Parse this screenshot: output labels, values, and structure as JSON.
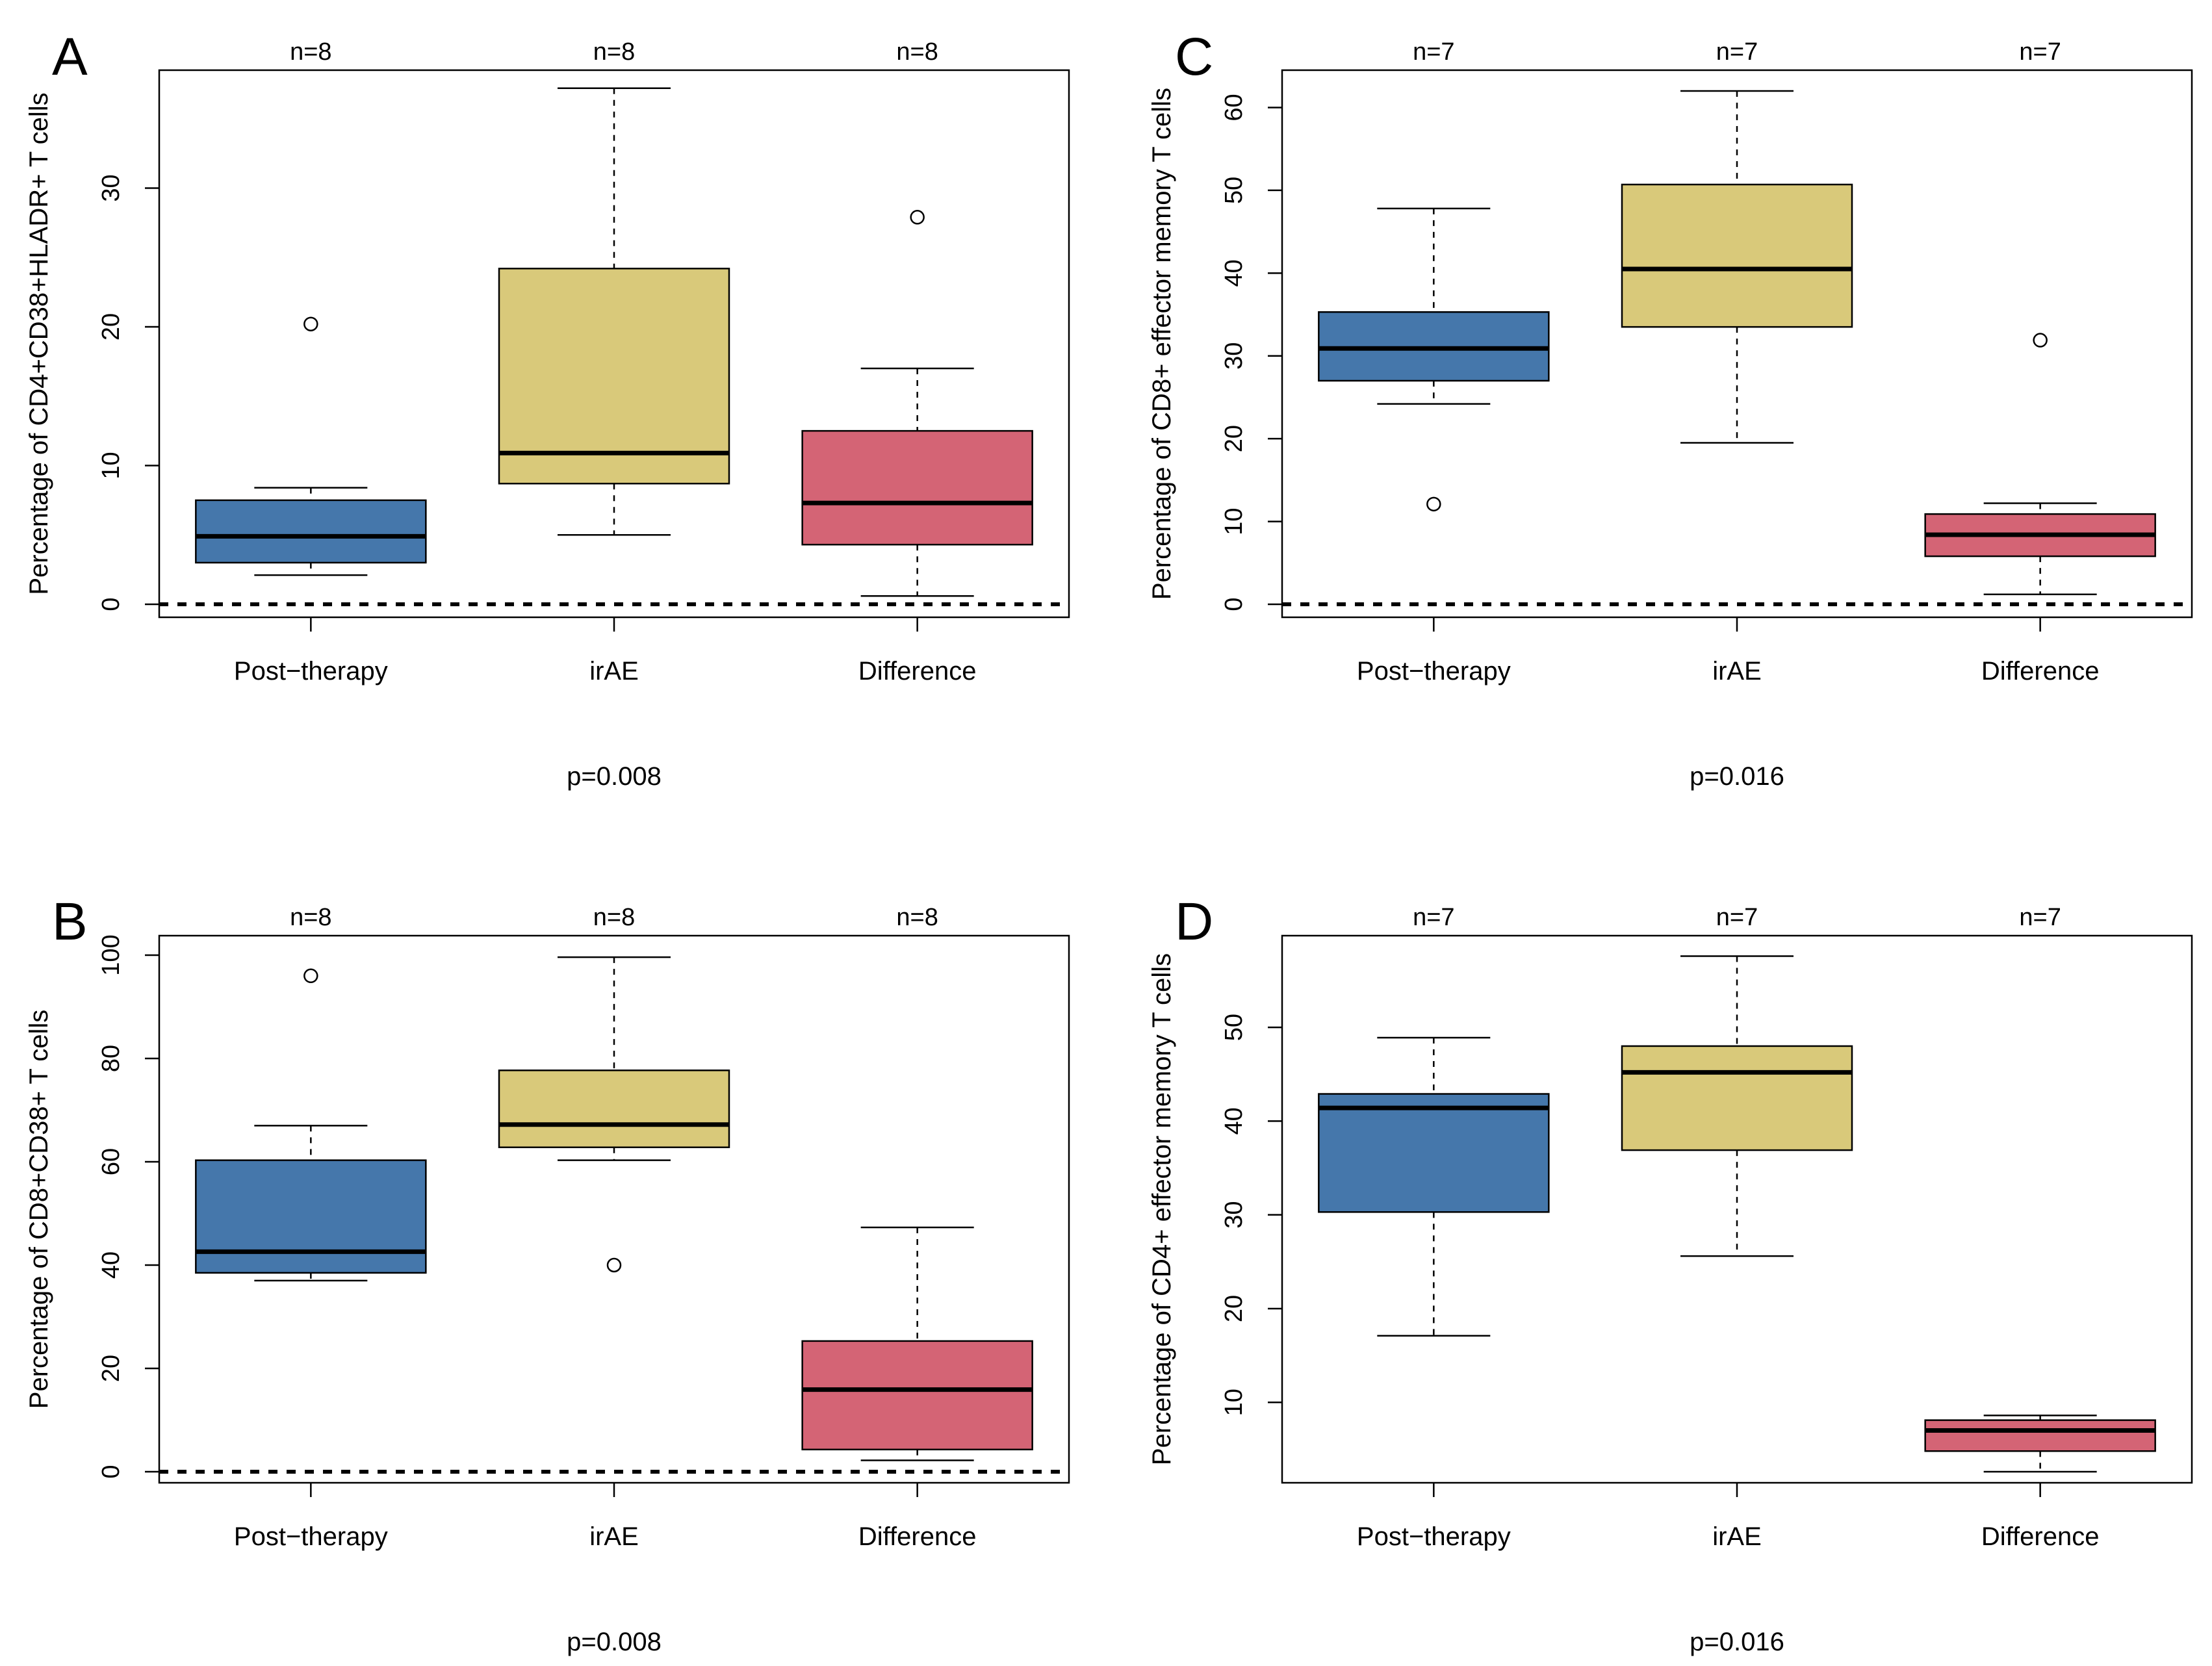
{
  "colors": {
    "post_therapy": "#4577ab",
    "irae": "#d9c97a",
    "difference": "#d46475",
    "stroke": "#000000",
    "outlier_fill": "#ffffff"
  },
  "chart_data": [
    {
      "panel": "A",
      "type": "boxplot",
      "ylabel": "Percentage of CD4+CD38+HLADR+ T cells",
      "ylim": [
        0,
        37
      ],
      "yticks": [
        0,
        10,
        20,
        30
      ],
      "reference_line": 0,
      "categories": [
        "Post−therapy",
        "irAE",
        "Difference"
      ],
      "n_labels": [
        "n=8",
        "n=8",
        "n=8"
      ],
      "p_value": "p=0.008",
      "boxes": [
        {
          "category": "Post−therapy",
          "whisker_low": 2.1,
          "q1": 3.0,
          "median": 4.9,
          "q3": 7.5,
          "whisker_high": 8.4,
          "outliers": [
            20.2
          ]
        },
        {
          "category": "irAE",
          "whisker_low": 5.0,
          "q1": 8.7,
          "median": 10.9,
          "q3": 24.2,
          "whisker_high": 37.2,
          "outliers": []
        },
        {
          "category": "Difference",
          "whisker_low": 0.6,
          "q1": 4.3,
          "median": 7.3,
          "q3": 12.5,
          "whisker_high": 17.0,
          "outliers": [
            27.9
          ]
        }
      ]
    },
    {
      "panel": "C",
      "type": "boxplot",
      "ylabel": "Percentage of CD8+ effector memory T cells",
      "ylim": [
        0,
        62
      ],
      "yticks": [
        0,
        10,
        20,
        30,
        40,
        50,
        60
      ],
      "reference_line": 0,
      "categories": [
        "Post−therapy",
        "irAE",
        "Difference"
      ],
      "n_labels": [
        "n=7",
        "n=7",
        "n=7"
      ],
      "p_value": "p=0.016",
      "boxes": [
        {
          "category": "Post−therapy",
          "whisker_low": 24.2,
          "q1": 27.0,
          "median": 30.9,
          "q3": 35.3,
          "whisker_high": 47.8,
          "outliers": [
            12.1
          ]
        },
        {
          "category": "irAE",
          "whisker_low": 19.5,
          "q1": 33.5,
          "median": 40.5,
          "q3": 50.7,
          "whisker_high": 62.0,
          "outliers": []
        },
        {
          "category": "Difference",
          "whisker_low": 1.2,
          "q1": 5.8,
          "median": 8.4,
          "q3": 10.9,
          "whisker_high": 12.2,
          "outliers": [
            31.9
          ]
        }
      ]
    },
    {
      "panel": "B",
      "type": "boxplot",
      "ylabel": "Percentage of CD8+CD38+ T cells",
      "ylim": [
        0,
        100
      ],
      "yticks": [
        0,
        20,
        40,
        60,
        80,
        100
      ],
      "reference_line": 0,
      "categories": [
        "Post−therapy",
        "irAE",
        "Difference"
      ],
      "n_labels": [
        "n=8",
        "n=8",
        "n=8"
      ],
      "p_value": "p=0.008",
      "boxes": [
        {
          "category": "Post−therapy",
          "whisker_low": 37.0,
          "q1": 38.5,
          "median": 42.6,
          "q3": 60.3,
          "whisker_high": 67.0,
          "outliers": [
            96.0
          ]
        },
        {
          "category": "irAE",
          "whisker_low": 60.3,
          "q1": 62.8,
          "median": 67.2,
          "q3": 77.7,
          "whisker_high": 99.6,
          "outliers": [
            40.0
          ]
        },
        {
          "category": "Difference",
          "whisker_low": 2.2,
          "q1": 4.3,
          "median": 15.9,
          "q3": 25.3,
          "whisker_high": 47.3,
          "outliers": []
        }
      ]
    },
    {
      "panel": "D",
      "type": "boxplot",
      "ylabel": "Percentage of CD4+ effector memory T cells",
      "ylim": [
        2.6,
        57.7
      ],
      "yticks": [
        10,
        20,
        30,
        40,
        50
      ],
      "reference_line": null,
      "categories": [
        "Post−therapy",
        "irAE",
        "Difference"
      ],
      "n_labels": [
        "n=7",
        "n=7",
        "n=7"
      ],
      "p_value": "p=0.016",
      "boxes": [
        {
          "category": "Post−therapy",
          "whisker_low": 17.1,
          "q1": 30.3,
          "median": 41.4,
          "q3": 42.9,
          "whisker_high": 48.9,
          "outliers": []
        },
        {
          "category": "irAE",
          "whisker_low": 25.6,
          "q1": 36.9,
          "median": 45.2,
          "q3": 48.0,
          "whisker_high": 57.6,
          "outliers": []
        },
        {
          "category": "Difference",
          "whisker_low": 2.6,
          "q1": 4.8,
          "median": 7.0,
          "q3": 8.1,
          "whisker_high": 8.6,
          "outliers": []
        }
      ]
    }
  ]
}
